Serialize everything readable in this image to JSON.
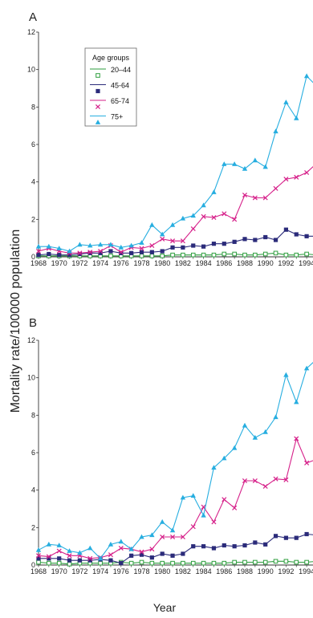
{
  "figure": {
    "ylabel": "Mortality rate/100000 population",
    "xlabel": "Year"
  },
  "legend": {
    "title": "Age groups",
    "items": [
      {
        "label": "20–44",
        "series": 0
      },
      {
        "label": "45-64",
        "series": 1
      },
      {
        "label": "65-74",
        "series": 2
      },
      {
        "label": "75+",
        "series": 3
      }
    ]
  },
  "styles": [
    {
      "color": "#2e9e3e",
      "marker": "square-open"
    },
    {
      "color": "#2b2b7a",
      "marker": "square-filled"
    },
    {
      "color": "#d6218a",
      "marker": "x"
    },
    {
      "color": "#27aee0",
      "marker": "triangle"
    }
  ],
  "chart_data": [
    {
      "panel": "A",
      "type": "line",
      "x": [
        1968,
        1969,
        1970,
        1971,
        1972,
        1973,
        1974,
        1975,
        1976,
        1977,
        1978,
        1979,
        1980,
        1981,
        1982,
        1983,
        1984,
        1985,
        1986,
        1987,
        1988,
        1989,
        1990,
        1991,
        1992,
        1993,
        1994,
        1995
      ],
      "xticks": [
        1968,
        1970,
        1972,
        1974,
        1976,
        1978,
        1980,
        1982,
        1984,
        1986,
        1988,
        1990,
        1992,
        1994
      ],
      "ylim": [
        0,
        12
      ],
      "yticks": [
        0,
        2,
        4,
        6,
        8,
        10,
        12
      ],
      "series": [
        {
          "name": "20–44",
          "values": [
            0.05,
            0.05,
            0.05,
            0.05,
            0.05,
            0.05,
            0.05,
            0.05,
            0.05,
            0.05,
            0.05,
            0.05,
            0.05,
            0.1,
            0.1,
            0.1,
            0.1,
            0.1,
            0.15,
            0.15,
            0.1,
            0.1,
            0.15,
            0.2,
            0.1,
            0.1,
            0.15,
            0.1
          ]
        },
        {
          "name": "45-64",
          "values": [
            0.1,
            0.15,
            0.1,
            0.1,
            0.15,
            0.2,
            0.2,
            0.3,
            0.2,
            0.2,
            0.25,
            0.25,
            0.3,
            0.5,
            0.5,
            0.6,
            0.55,
            0.7,
            0.7,
            0.8,
            0.95,
            0.9,
            1.05,
            0.9,
            1.45,
            1.2,
            1.1,
            1.1
          ]
        },
        {
          "name": "65-74",
          "values": [
            0.3,
            0.45,
            0.3,
            0.2,
            0.2,
            0.25,
            0.3,
            0.6,
            0.25,
            0.5,
            0.45,
            0.6,
            0.95,
            0.85,
            0.85,
            1.5,
            2.15,
            2.1,
            2.3,
            2.0,
            3.3,
            3.15,
            3.15,
            3.65,
            4.15,
            4.25,
            4.5,
            5.0
          ]
        },
        {
          "name": "75+",
          "values": [
            0.55,
            0.55,
            0.45,
            0.3,
            0.65,
            0.6,
            0.65,
            0.65,
            0.5,
            0.6,
            0.75,
            1.7,
            1.2,
            1.7,
            2.05,
            2.2,
            2.75,
            3.45,
            4.95,
            4.95,
            4.7,
            5.15,
            4.8,
            6.7,
            8.25,
            7.4,
            9.65,
            9.1
          ]
        }
      ]
    },
    {
      "panel": "B",
      "type": "line",
      "x": [
        1968,
        1969,
        1970,
        1971,
        1972,
        1973,
        1974,
        1975,
        1976,
        1977,
        1978,
        1979,
        1980,
        1981,
        1982,
        1983,
        1984,
        1985,
        1986,
        1987,
        1988,
        1989,
        1990,
        1991,
        1992,
        1993,
        1994,
        1995
      ],
      "xticks": [
        1968,
        1970,
        1972,
        1974,
        1976,
        1978,
        1980,
        1982,
        1984,
        1986,
        1988,
        1990,
        1992,
        1994
      ],
      "ylim": [
        0,
        12
      ],
      "yticks": [
        0,
        2,
        4,
        6,
        8,
        10,
        12
      ],
      "series": [
        {
          "name": "20–44",
          "values": [
            0.15,
            0.1,
            0.1,
            0.05,
            0.1,
            0.1,
            0.1,
            0.1,
            0.15,
            0.1,
            0.15,
            0.1,
            0.1,
            0.1,
            0.1,
            0.1,
            0.1,
            0.1,
            0.1,
            0.15,
            0.15,
            0.15,
            0.15,
            0.2,
            0.2,
            0.15,
            0.15,
            0.2
          ]
        },
        {
          "name": "45-64",
          "values": [
            0.35,
            0.35,
            0.35,
            0.25,
            0.25,
            0.25,
            0.3,
            0.25,
            0.1,
            0.5,
            0.55,
            0.4,
            0.6,
            0.5,
            0.6,
            1.0,
            1.0,
            0.9,
            1.05,
            1.0,
            1.05,
            1.2,
            1.1,
            1.55,
            1.45,
            1.45,
            1.65,
            1.6
          ]
        },
        {
          "name": "65-74",
          "values": [
            0.5,
            0.45,
            0.75,
            0.5,
            0.5,
            0.35,
            0.4,
            0.55,
            0.9,
            0.85,
            0.7,
            0.85,
            1.5,
            1.5,
            1.5,
            2.05,
            3.1,
            2.3,
            3.5,
            3.05,
            4.5,
            4.5,
            4.2,
            4.6,
            4.55,
            6.75,
            5.45,
            5.65
          ]
        },
        {
          "name": "75+",
          "values": [
            0.8,
            1.1,
            1.05,
            0.75,
            0.65,
            0.9,
            0.35,
            1.1,
            1.25,
            0.85,
            1.5,
            1.6,
            2.3,
            1.85,
            3.6,
            3.7,
            2.65,
            5.2,
            5.7,
            6.25,
            7.45,
            6.8,
            7.1,
            7.9,
            10.15,
            8.7,
            10.5,
            11.0
          ]
        }
      ]
    }
  ]
}
